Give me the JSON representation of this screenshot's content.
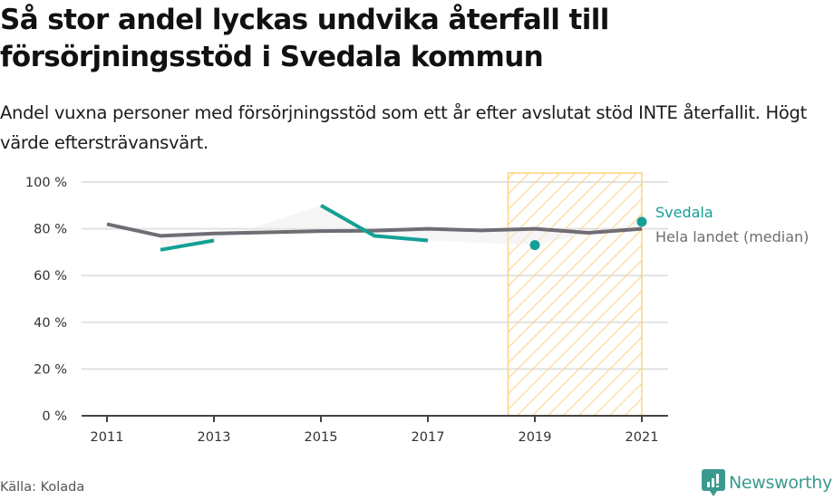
{
  "header": {
    "title": "Så stor andel lyckas undvika återfall till försörjningsstöd i Svedala kommun",
    "subtitle": "Andel vuxna personer med försörjningsstöd som ett år efter avslutat stöd INTE återfallit. Högt värde eftersträvansvärt."
  },
  "footer": {
    "source": "Källa: Kolada",
    "brand": "Newsworthy",
    "brand_icon": "bar-chart-speech-bubble-icon",
    "brand_color": "#3a9a8e"
  },
  "chart_data": {
    "type": "line",
    "title": "Så stor andel lyckas undvika återfall till försörjningsstöd i Svedala kommun",
    "xlabel": "",
    "ylabel": "",
    "x": [
      2011,
      2012,
      2013,
      2014,
      2015,
      2016,
      2017,
      2018,
      2019,
      2020,
      2021
    ],
    "xlim": [
      2011,
      2021
    ],
    "ylim": [
      0,
      100
    ],
    "x_ticks": [
      "2011",
      "2013",
      "2015",
      "2017",
      "2019",
      "2021"
    ],
    "y_ticks": [
      "0 %",
      "20 %",
      "40 %",
      "60 %",
      "80 %",
      "100 %"
    ],
    "grid": true,
    "series": [
      {
        "name": "Svedala",
        "color": "#14a095",
        "values": [
          null,
          71,
          75,
          null,
          90,
          77,
          75,
          null,
          73,
          null,
          83
        ]
      },
      {
        "name": "Hela landet (median)",
        "color": "#6e6d74",
        "values": [
          82,
          77,
          78,
          78.5,
          79,
          79.2,
          80,
          79.3,
          80,
          78.3,
          80
        ]
      }
    ],
    "highlight_region": {
      "x_start": 2018.5,
      "x_end": 2021,
      "color": "#fcd37f",
      "pattern": "hatched"
    },
    "legend": "right-end labels"
  }
}
